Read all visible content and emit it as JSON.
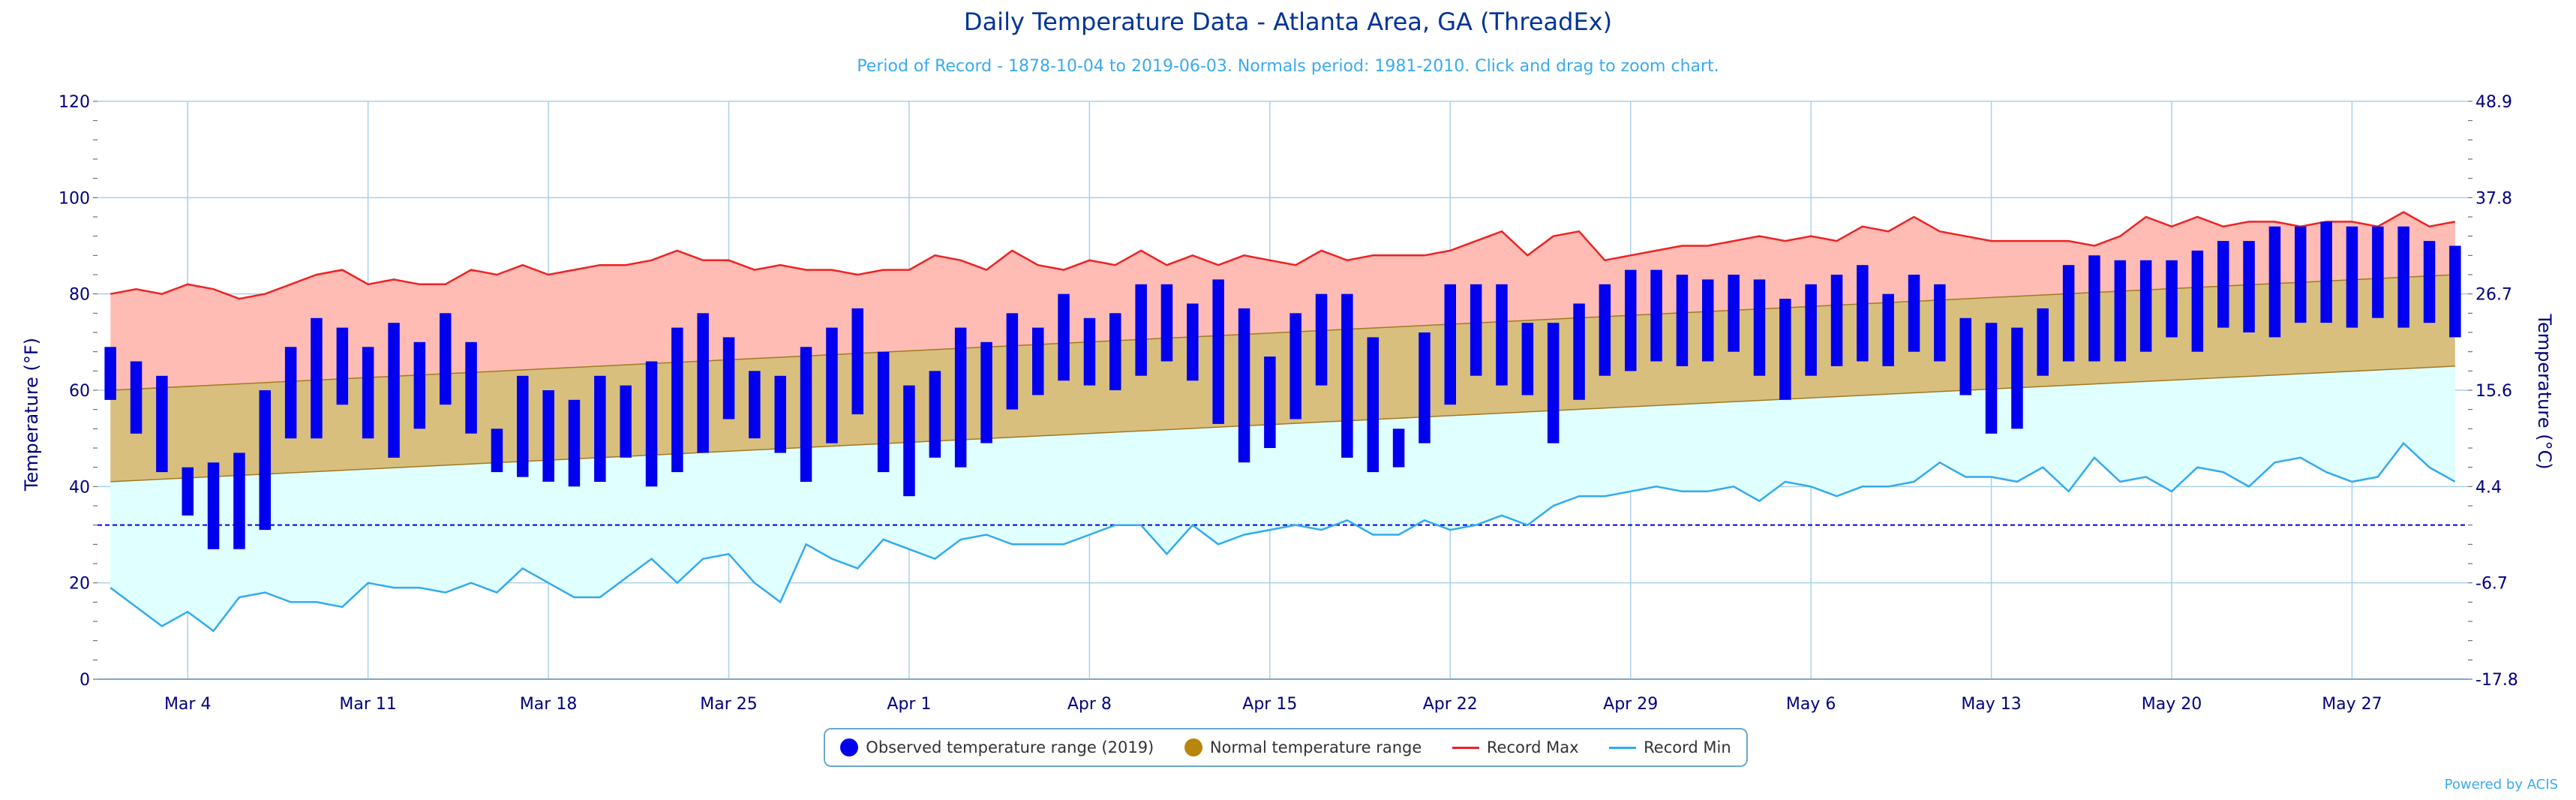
{
  "chart_data": {
    "type": "bar",
    "title": "Daily Temperature Data - Atlanta Area, GA (ThreadEx)",
    "subtitle": "Period of Record - 1878-10-04 to 2019-06-03. Normals period: 1981-2010. Click and drag to zoom chart.",
    "ylabel": "Temperature (°F)",
    "ylabel_right": "Temperature (°C)",
    "ylim": [
      0,
      120
    ],
    "yticks": [
      "0",
      "20",
      "40",
      "60",
      "80",
      "100",
      "120"
    ],
    "yticks_right": [
      "-17.8",
      "-6.7",
      "4.4",
      "15.6",
      "26.7",
      "37.8",
      "48.9"
    ],
    "x_start": "Mar 1",
    "x_ticks": [
      {
        "label": "Mar 4",
        "day": 3
      },
      {
        "label": "Mar 11",
        "day": 10
      },
      {
        "label": "Mar 18",
        "day": 17
      },
      {
        "label": "Mar 25",
        "day": 24
      },
      {
        "label": "Apr 1",
        "day": 31
      },
      {
        "label": "Apr 8",
        "day": 38
      },
      {
        "label": "Apr 15",
        "day": 45
      },
      {
        "label": "Apr 22",
        "day": 52
      },
      {
        "label": "Apr 29",
        "day": 59
      },
      {
        "label": "May 6",
        "day": 66
      },
      {
        "label": "May 13",
        "day": 73
      },
      {
        "label": "May 20",
        "day": 80
      },
      {
        "label": "May 27",
        "day": 87
      }
    ],
    "freezing_line": 32,
    "normal_low": [
      41,
      65
    ],
    "normal_high": [
      60,
      84
    ],
    "observed": {
      "name": "Observed temperature range (2019)",
      "low": [
        58,
        51,
        43,
        34,
        27,
        27,
        31,
        50,
        50,
        57,
        50,
        46,
        52,
        57,
        51,
        43,
        42,
        41,
        40,
        41,
        46,
        40,
        43,
        47,
        54,
        50,
        47,
        41,
        49,
        55,
        43,
        38,
        46,
        44,
        49,
        56,
        59,
        62,
        61,
        60,
        63,
        66,
        62,
        53,
        45,
        48,
        54,
        61,
        46,
        43,
        44,
        49,
        57,
        63,
        61,
        59,
        49,
        58,
        63,
        64,
        66,
        65,
        66,
        68,
        63,
        58,
        63,
        65,
        66,
        65,
        68,
        66,
        59,
        51,
        52,
        63,
        66,
        66,
        66,
        68,
        71,
        68,
        73,
        72,
        71,
        74,
        74,
        73,
        75,
        73,
        74,
        71
      ],
      "high": [
        69,
        66,
        63,
        44,
        45,
        47,
        60,
        69,
        75,
        73,
        69,
        74,
        70,
        76,
        70,
        52,
        63,
        60,
        58,
        63,
        61,
        66,
        73,
        76,
        71,
        64,
        63,
        69,
        73,
        77,
        68,
        61,
        64,
        73,
        70,
        76,
        73,
        80,
        75,
        76,
        82,
        82,
        78,
        83,
        77,
        67,
        76,
        80,
        80,
        71,
        52,
        72,
        82,
        82,
        82,
        74,
        74,
        78,
        82,
        85,
        85,
        84,
        83,
        84,
        83,
        79,
        82,
        84,
        86,
        80,
        84,
        82,
        75,
        74,
        73,
        77,
        86,
        88,
        87,
        87,
        87,
        89,
        91,
        91,
        94,
        94,
        95,
        94,
        94,
        94,
        91,
        90
      ]
    },
    "record_max": {
      "name": "Record Max",
      "values": [
        80,
        81,
        80,
        82,
        81,
        79,
        80,
        82,
        84,
        85,
        82,
        83,
        82,
        82,
        85,
        84,
        86,
        84,
        85,
        86,
        86,
        87,
        89,
        87,
        87,
        85,
        86,
        85,
        85,
        84,
        85,
        85,
        88,
        87,
        85,
        89,
        86,
        85,
        87,
        86,
        89,
        86,
        88,
        86,
        88,
        87,
        86,
        89,
        87,
        88,
        88,
        88,
        89,
        91,
        93,
        88,
        92,
        93,
        87,
        88,
        89,
        90,
        90,
        91,
        92,
        91,
        92,
        91,
        94,
        93,
        96,
        93,
        92,
        91,
        91,
        91,
        91,
        90,
        92,
        96,
        94,
        96,
        94,
        95,
        95,
        94,
        95,
        95,
        94,
        97,
        94,
        95
      ]
    },
    "record_min": {
      "name": "Record Min",
      "values": [
        19,
        15,
        11,
        14,
        10,
        17,
        18,
        16,
        16,
        15,
        20,
        19,
        19,
        18,
        20,
        18,
        23,
        20,
        17,
        17,
        21,
        25,
        20,
        25,
        26,
        20,
        16,
        28,
        25,
        23,
        29,
        27,
        25,
        29,
        30,
        28,
        28,
        28,
        30,
        32,
        32,
        26,
        32,
        28,
        30,
        31,
        32,
        31,
        33,
        30,
        30,
        33,
        31,
        32,
        34,
        32,
        36,
        38,
        38,
        39,
        40,
        39,
        39,
        40,
        37,
        41,
        40,
        38,
        40,
        40,
        41,
        45,
        42,
        42,
        41,
        44,
        39,
        46,
        41,
        42,
        39,
        44,
        43,
        40,
        45,
        46,
        43,
        41,
        42,
        49,
        44,
        41
      ]
    },
    "legend": {
      "observed": "Observed temperature range (2019)",
      "normal": "Normal temperature range",
      "max": "Record Max",
      "min": "Record Min"
    },
    "colors": {
      "observed": "#0000ee",
      "normal_fill": "#d9bf7e",
      "normal_marker": "#b8860b",
      "max_line": "#ee2222",
      "max_fill": "#ffbcb5",
      "min_line": "#33aaee",
      "min_fill": "#e0ffff",
      "grid": "#a8d0ec",
      "axis_text": "#000080",
      "freezing": "#0000ee"
    },
    "credits": "Powered by ACIS"
  }
}
